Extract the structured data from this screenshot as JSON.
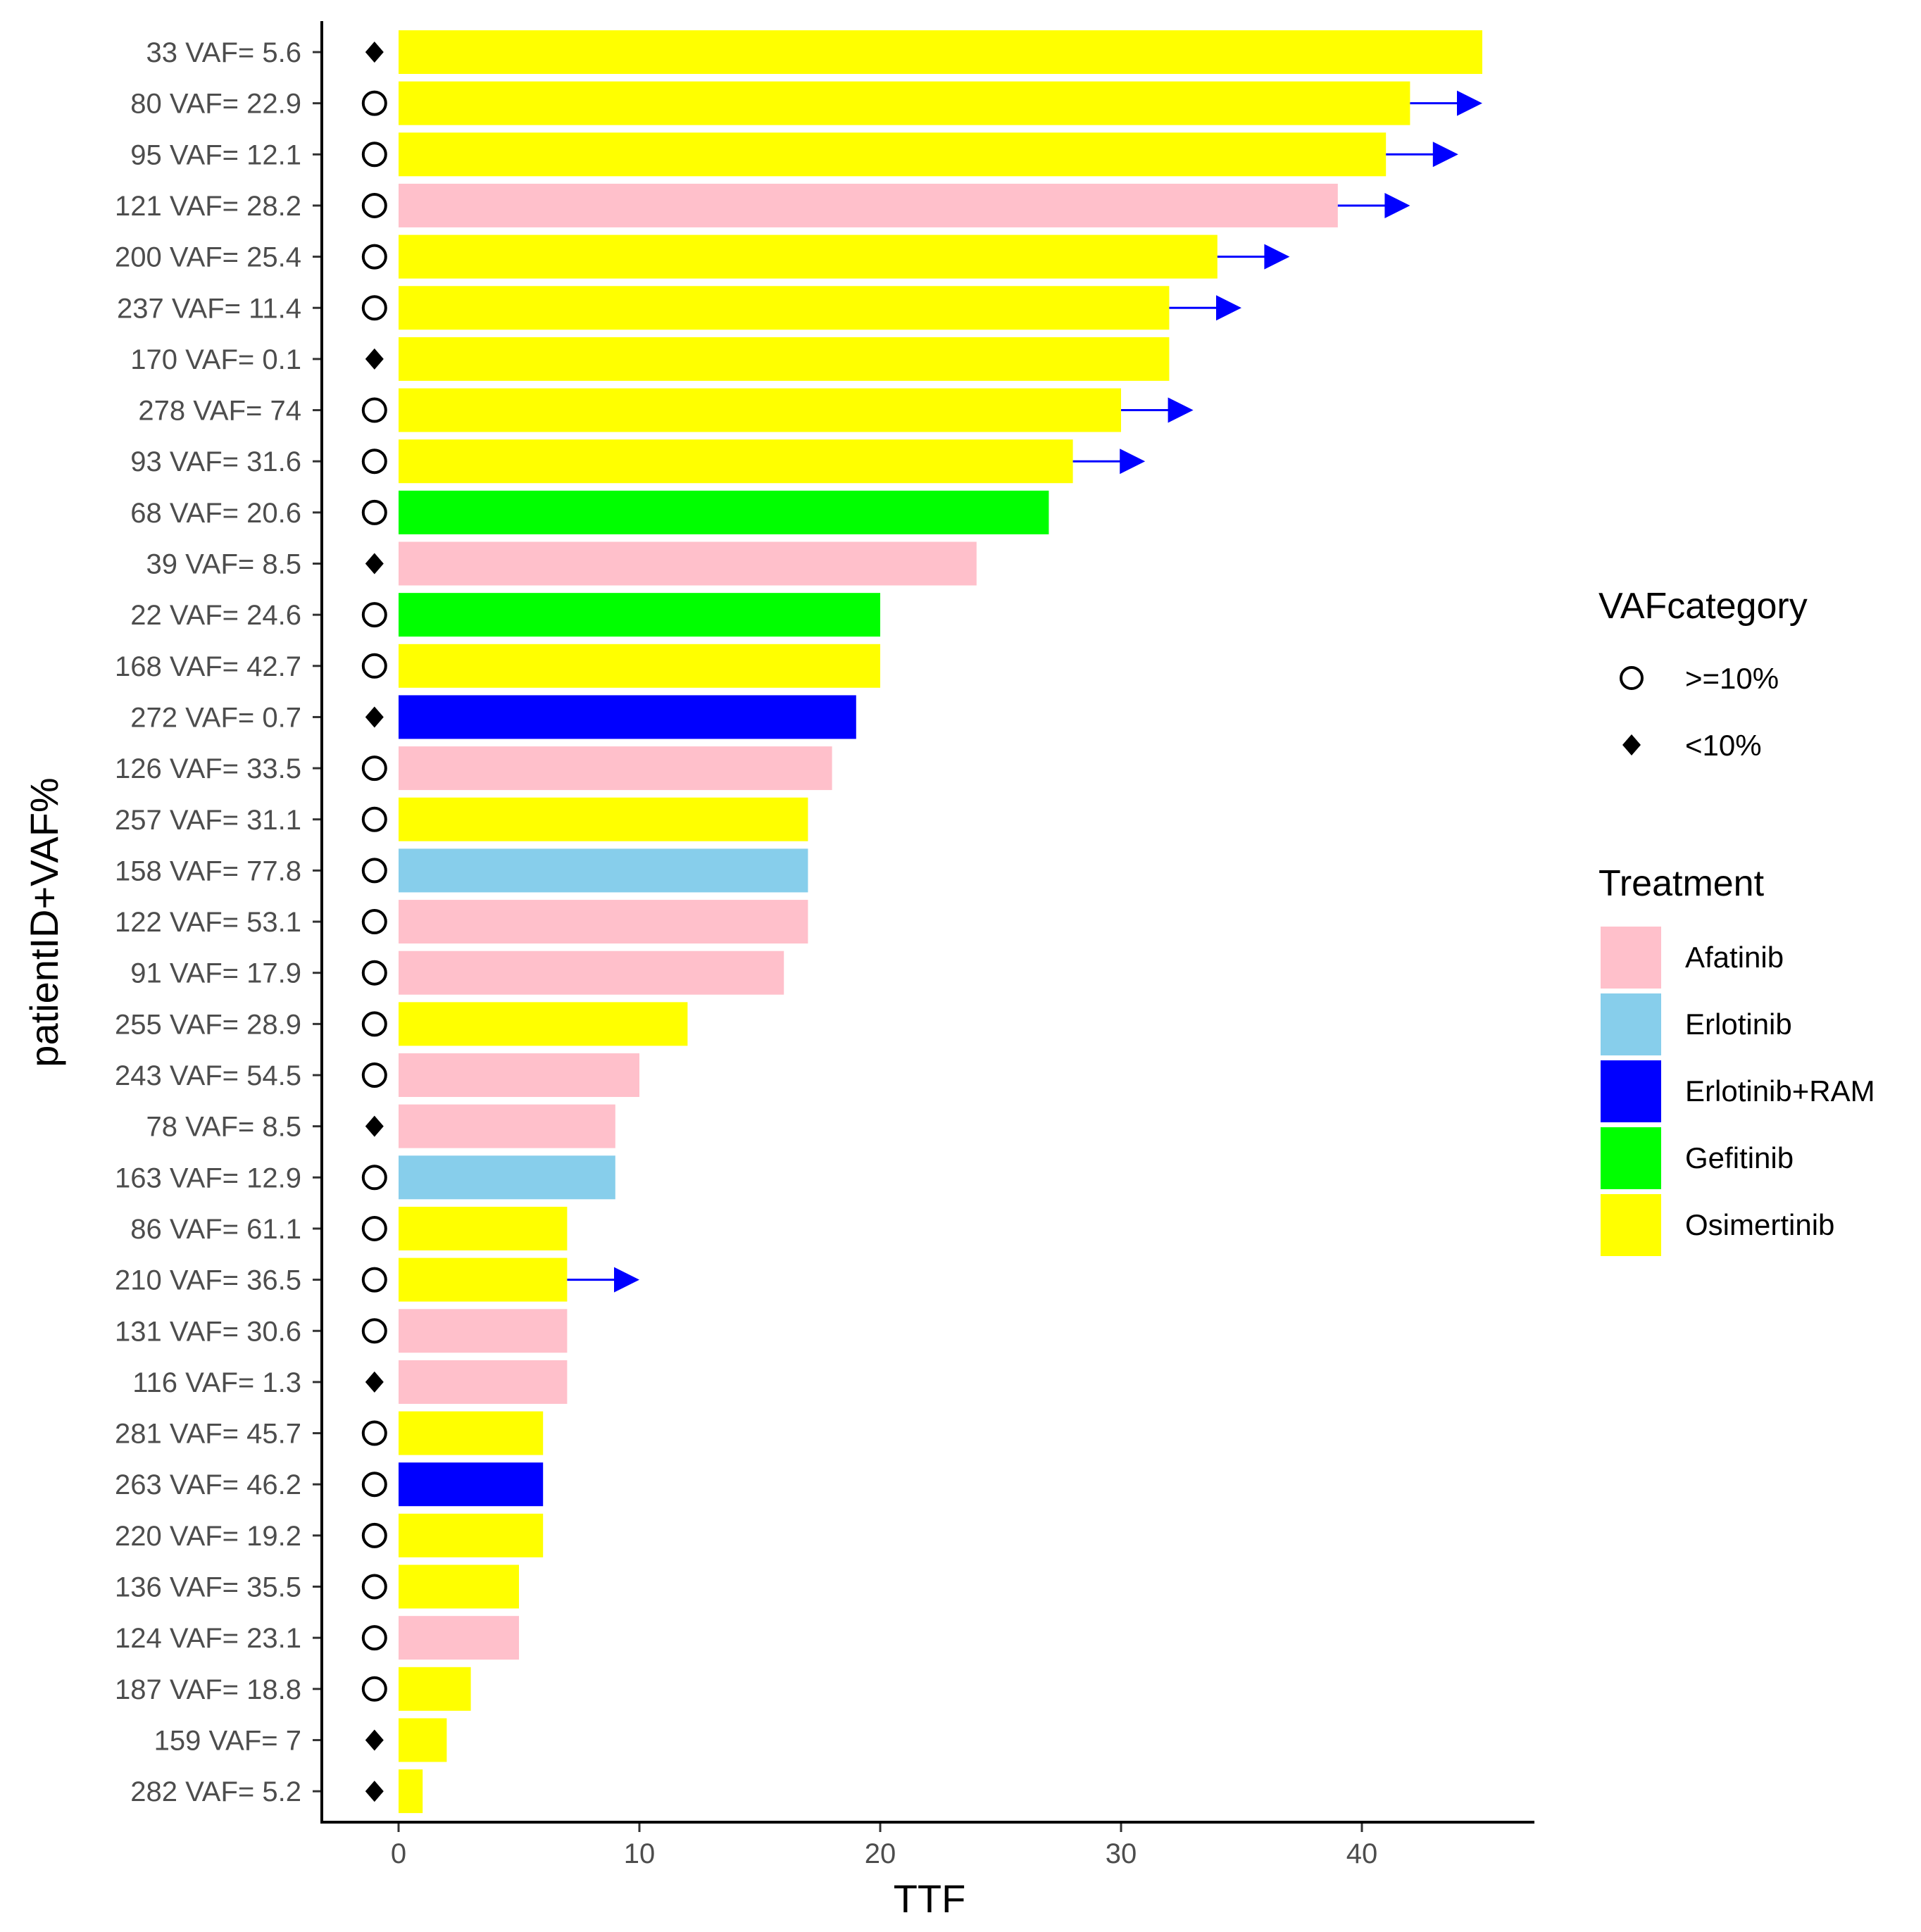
{
  "chart_data": {
    "type": "bar",
    "orientation": "horizontal",
    "xlabel": "TTF",
    "ylabel": "patientID+VAF%",
    "xlim": [
      -3.4,
      47.6
    ],
    "xticks": [
      0,
      10,
      20,
      30,
      40
    ],
    "rows": [
      {
        "label": "33 VAF= 5.6",
        "ttf": 45,
        "treatment": "Osimertinib",
        "vaf_category": "<10%",
        "ongoing": false
      },
      {
        "label": "80 VAF= 22.9",
        "ttf": 42,
        "treatment": "Osimertinib",
        "vaf_category": ">=10%",
        "ongoing": true
      },
      {
        "label": "95 VAF= 12.1",
        "ttf": 41,
        "treatment": "Osimertinib",
        "vaf_category": ">=10%",
        "ongoing": true
      },
      {
        "label": "121 VAF= 28.2",
        "ttf": 39,
        "treatment": "Afatinib",
        "vaf_category": ">=10%",
        "ongoing": true
      },
      {
        "label": "200 VAF= 25.4",
        "ttf": 34,
        "treatment": "Osimertinib",
        "vaf_category": ">=10%",
        "ongoing": true
      },
      {
        "label": "237 VAF= 11.4",
        "ttf": 32,
        "treatment": "Osimertinib",
        "vaf_category": ">=10%",
        "ongoing": true
      },
      {
        "label": "170 VAF= 0.1",
        "ttf": 32,
        "treatment": "Osimertinib",
        "vaf_category": "<10%",
        "ongoing": false
      },
      {
        "label": "278 VAF= 74",
        "ttf": 30,
        "treatment": "Osimertinib",
        "vaf_category": ">=10%",
        "ongoing": true
      },
      {
        "label": "93 VAF= 31.6",
        "ttf": 28,
        "treatment": "Osimertinib",
        "vaf_category": ">=10%",
        "ongoing": true
      },
      {
        "label": "68 VAF= 20.6",
        "ttf": 27,
        "treatment": "Gefitinib",
        "vaf_category": ">=10%",
        "ongoing": false
      },
      {
        "label": "39 VAF= 8.5",
        "ttf": 24,
        "treatment": "Afatinib",
        "vaf_category": "<10%",
        "ongoing": false
      },
      {
        "label": "22 VAF= 24.6",
        "ttf": 20,
        "treatment": "Gefitinib",
        "vaf_category": ">=10%",
        "ongoing": false
      },
      {
        "label": "168 VAF= 42.7",
        "ttf": 20,
        "treatment": "Osimertinib",
        "vaf_category": ">=10%",
        "ongoing": false
      },
      {
        "label": "272 VAF= 0.7",
        "ttf": 19,
        "treatment": "Erlotinib+RAM",
        "vaf_category": "<10%",
        "ongoing": false
      },
      {
        "label": "126 VAF= 33.5",
        "ttf": 18,
        "treatment": "Afatinib",
        "vaf_category": ">=10%",
        "ongoing": false
      },
      {
        "label": "257 VAF= 31.1",
        "ttf": 17,
        "treatment": "Osimertinib",
        "vaf_category": ">=10%",
        "ongoing": false
      },
      {
        "label": "158 VAF= 77.8",
        "ttf": 17,
        "treatment": "Erlotinib",
        "vaf_category": ">=10%",
        "ongoing": false
      },
      {
        "label": "122 VAF= 53.1",
        "ttf": 17,
        "treatment": "Afatinib",
        "vaf_category": ">=10%",
        "ongoing": false
      },
      {
        "label": "91 VAF= 17.9",
        "ttf": 16,
        "treatment": "Afatinib",
        "vaf_category": ">=10%",
        "ongoing": false
      },
      {
        "label": "255 VAF= 28.9",
        "ttf": 12,
        "treatment": "Osimertinib",
        "vaf_category": ">=10%",
        "ongoing": false
      },
      {
        "label": "243 VAF= 54.5",
        "ttf": 10,
        "treatment": "Afatinib",
        "vaf_category": ">=10%",
        "ongoing": false
      },
      {
        "label": "78 VAF= 8.5",
        "ttf": 9,
        "treatment": "Afatinib",
        "vaf_category": "<10%",
        "ongoing": false
      },
      {
        "label": "163 VAF= 12.9",
        "ttf": 9,
        "treatment": "Erlotinib",
        "vaf_category": ">=10%",
        "ongoing": false
      },
      {
        "label": "86 VAF= 61.1",
        "ttf": 7,
        "treatment": "Osimertinib",
        "vaf_category": ">=10%",
        "ongoing": false
      },
      {
        "label": "210 VAF= 36.5",
        "ttf": 7,
        "treatment": "Osimertinib",
        "vaf_category": ">=10%",
        "ongoing": true
      },
      {
        "label": "131 VAF= 30.6",
        "ttf": 7,
        "treatment": "Afatinib",
        "vaf_category": ">=10%",
        "ongoing": false
      },
      {
        "label": "116 VAF= 1.3",
        "ttf": 7,
        "treatment": "Afatinib",
        "vaf_category": "<10%",
        "ongoing": false
      },
      {
        "label": "281 VAF= 45.7",
        "ttf": 6,
        "treatment": "Osimertinib",
        "vaf_category": ">=10%",
        "ongoing": false
      },
      {
        "label": "263 VAF= 46.2",
        "ttf": 6,
        "treatment": "Erlotinib+RAM",
        "vaf_category": ">=10%",
        "ongoing": false
      },
      {
        "label": "220 VAF= 19.2",
        "ttf": 6,
        "treatment": "Osimertinib",
        "vaf_category": ">=10%",
        "ongoing": false
      },
      {
        "label": "136 VAF= 35.5",
        "ttf": 5,
        "treatment": "Osimertinib",
        "vaf_category": ">=10%",
        "ongoing": false
      },
      {
        "label": "124 VAF= 23.1",
        "ttf": 5,
        "treatment": "Afatinib",
        "vaf_category": ">=10%",
        "ongoing": false
      },
      {
        "label": "187 VAF= 18.8",
        "ttf": 3,
        "treatment": "Osimertinib",
        "vaf_category": ">=10%",
        "ongoing": false
      },
      {
        "label": "159 VAF= 7",
        "ttf": 2,
        "treatment": "Osimertinib",
        "vaf_category": "<10%",
        "ongoing": false
      },
      {
        "label": "282 VAF= 5.2",
        "ttf": 1,
        "treatment": "Osimertinib",
        "vaf_category": "<10%",
        "ongoing": false
      }
    ],
    "ongoing_arrow_length": 3,
    "vaf_marker_x": -1,
    "legend_vaf": {
      "title": "VAFcategory",
      "entries": [
        {
          "label": ">=10%",
          "shape": "open-circle"
        },
        {
          "label": "<10%",
          "shape": "filled-diamond"
        }
      ]
    },
    "legend_treatment": {
      "title": "Treatment",
      "entries": [
        {
          "label": "Afatinib",
          "color": "#FFC0CB"
        },
        {
          "label": "Erlotinib",
          "color": "#87CEEB"
        },
        {
          "label": "Erlotinib+RAM",
          "color": "#0000FF"
        },
        {
          "label": "Gefitinib",
          "color": "#00FF00"
        },
        {
          "label": "Osimertinib",
          "color": "#FFFF00"
        }
      ]
    },
    "arrow_color": "#0000FF"
  }
}
